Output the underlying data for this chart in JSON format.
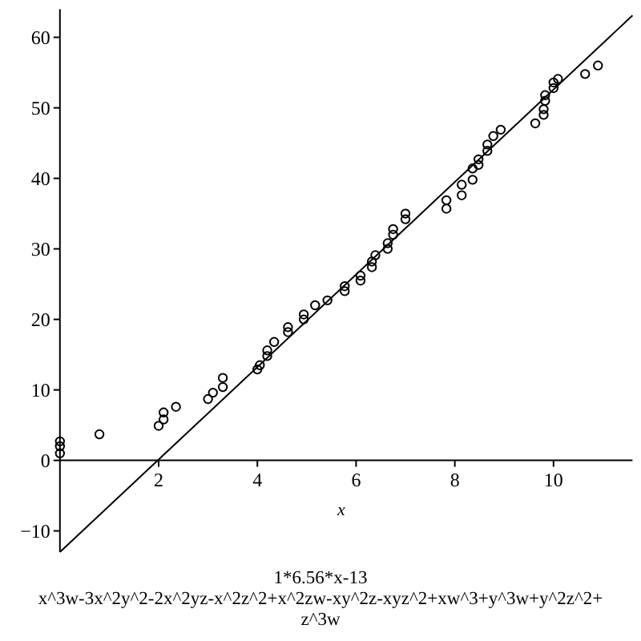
{
  "chart_data": {
    "type": "scatter",
    "xlabel": "x",
    "xlim": [
      0,
      11.6
    ],
    "ylim": [
      -13,
      64
    ],
    "xticks": [
      2,
      4,
      6,
      8,
      10
    ],
    "yticks": [
      -10,
      0,
      10,
      20,
      30,
      40,
      50,
      60
    ],
    "grid": false,
    "annotations": [
      "1*6.56*x-13",
      "x^3w-3x^2y^2-2x^2yz-x^2z^2+x^2zw-xy^2z-xyz^2+xw^3+y^3w+y^2z^2+z^3w"
    ],
    "series": [
      {
        "marker": "circle",
        "color": "#000000",
        "x": [
          0,
          0,
          0,
          0.8,
          2.0,
          2.1,
          2.1,
          2.35,
          3.0,
          3.1,
          3.3,
          3.3,
          4.0,
          4.05,
          4.2,
          4.2,
          4.34,
          4.62,
          4.62,
          4.94,
          4.94,
          5.17,
          5.42,
          5.77,
          5.77,
          6.09,
          6.09,
          6.32,
          6.32,
          6.39,
          6.64,
          6.64,
          6.75,
          6.75,
          7.0,
          7.0,
          7.83,
          7.83,
          8.14,
          8.14,
          8.36,
          8.36,
          8.48,
          8.48,
          8.66,
          8.66,
          8.78,
          8.93,
          9.63,
          9.8,
          9.8,
          9.83,
          9.83,
          10.0,
          10.0,
          10.09,
          10.64,
          10.9
        ],
        "values": [
          1.0,
          2.0,
          2.7,
          3.7,
          4.9,
          5.8,
          6.8,
          7.6,
          8.7,
          9.6,
          10.4,
          11.7,
          12.9,
          13.5,
          14.8,
          15.6,
          16.8,
          18.2,
          18.9,
          20.0,
          20.7,
          22.0,
          22.7,
          24.0,
          24.7,
          25.5,
          26.2,
          27.4,
          28.2,
          29.1,
          30.0,
          30.8,
          32.0,
          32.8,
          34.2,
          35.0,
          35.7,
          36.9,
          37.6,
          39.1,
          39.8,
          41.4,
          41.9,
          42.7,
          43.9,
          44.8,
          46.0,
          46.9,
          47.8,
          49.0,
          49.8,
          51.0,
          51.8,
          52.8,
          53.6,
          54.1,
          54.8,
          56.0
        ]
      },
      {
        "type": "line",
        "marker": "none",
        "color": "#000000",
        "x": [
          0,
          11.6
        ],
        "values": [
          -13,
          63.1
        ]
      }
    ]
  }
}
